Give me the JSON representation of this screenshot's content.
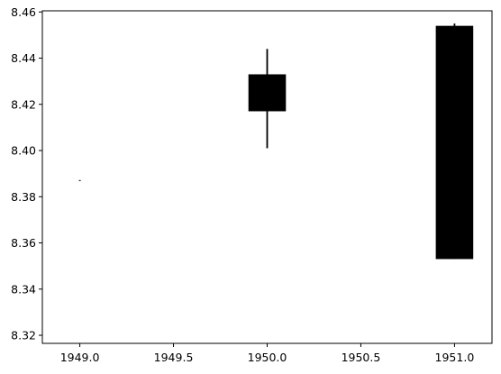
{
  "chart_data": {
    "type": "candlestick",
    "title": "",
    "xlabel": "",
    "ylabel": "",
    "xlim": [
      1948.8,
      1951.2
    ],
    "ylim": [
      8.3165,
      8.4605
    ],
    "x_ticks": [
      1949.0,
      1949.5,
      1950.0,
      1950.5,
      1951.0
    ],
    "x_tick_labels": [
      "1949.0",
      "1949.5",
      "1950.0",
      "1950.5",
      "1951.0"
    ],
    "y_ticks": [
      8.32,
      8.34,
      8.36,
      8.38,
      8.4,
      8.42,
      8.44,
      8.46
    ],
    "y_tick_labels": [
      "8.32",
      "8.34",
      "8.36",
      "8.38",
      "8.40",
      "8.42",
      "8.44",
      "8.46"
    ],
    "grid": false,
    "color": "#000000",
    "candles": [
      {
        "x": 1949.0,
        "open": 8.387,
        "close": 8.387,
        "low": 8.387,
        "high": 8.387
      },
      {
        "x": 1950.0,
        "open": 8.417,
        "close": 8.433,
        "low": 8.401,
        "high": 8.444
      },
      {
        "x": 1951.0,
        "open": 8.353,
        "close": 8.454,
        "low": 8.353,
        "high": 8.455
      }
    ]
  }
}
